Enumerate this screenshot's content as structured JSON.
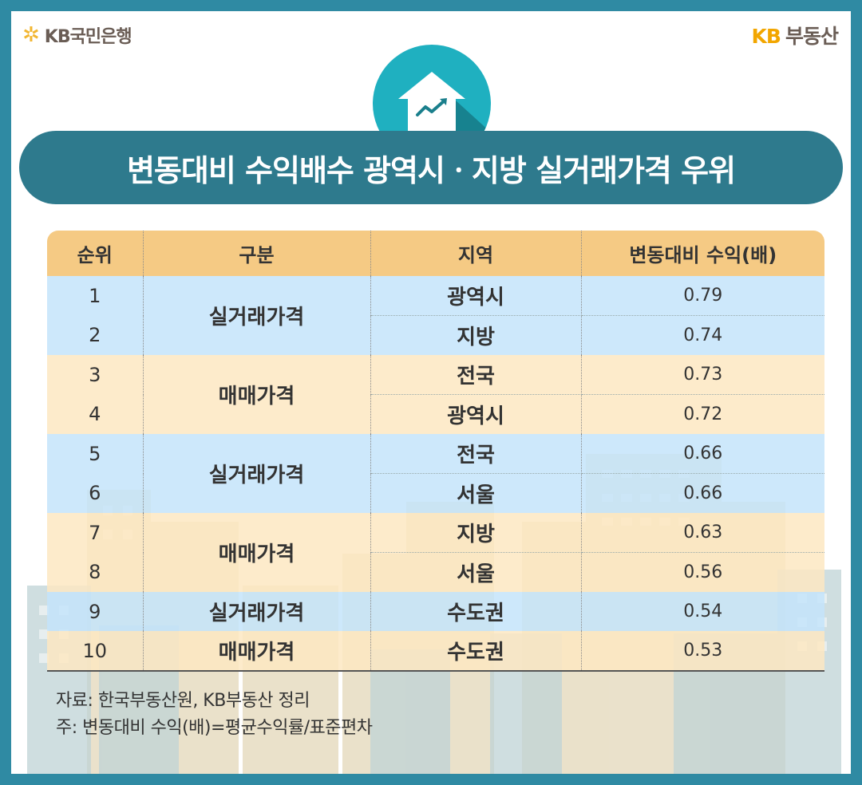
{
  "brand_left": "KB국민은행",
  "brand_right_prefix": "KB",
  "brand_right_suffix": "부동산",
  "title": "변동대비 수익배수 광역시ㆍ지방 실거래가격 우위",
  "table": {
    "headers": [
      "순위",
      "구분",
      "지역",
      "변동대비 수익(배)"
    ],
    "groups": [
      {
        "category": "실거래가격",
        "color": "blue",
        "rows": [
          {
            "rank": "1",
            "region": "광역시",
            "value": "0.79"
          },
          {
            "rank": "2",
            "region": "지방",
            "value": "0.74"
          }
        ]
      },
      {
        "category": "매매가격",
        "color": "tan",
        "rows": [
          {
            "rank": "3",
            "region": "전국",
            "value": "0.73"
          },
          {
            "rank": "4",
            "region": "광역시",
            "value": "0.72"
          }
        ]
      },
      {
        "category": "실거래가격",
        "color": "blue",
        "rows": [
          {
            "rank": "5",
            "region": "전국",
            "value": "0.66"
          },
          {
            "rank": "6",
            "region": "서울",
            "value": "0.66"
          }
        ]
      },
      {
        "category": "매매가격",
        "color": "tan",
        "rows": [
          {
            "rank": "7",
            "region": "지방",
            "value": "0.63"
          },
          {
            "rank": "8",
            "region": "서울",
            "value": "0.56"
          }
        ]
      },
      {
        "category": "실거래가격",
        "color": "blue",
        "rows": [
          {
            "rank": "9",
            "region": "수도권",
            "value": "0.54"
          }
        ]
      },
      {
        "category": "매매가격",
        "color": "tan",
        "rows": [
          {
            "rank": "10",
            "region": "수도권",
            "value": "0.53"
          }
        ]
      }
    ]
  },
  "notes": {
    "source": "자료: 한국부동산원, KB부동산 정리",
    "footnote": "주: 변동대비 수익(배)=평균수익률/표준편차"
  },
  "colors": {
    "frame": "#2f8aa3",
    "title_bar": "#2e7a8d",
    "header": "#f5ca84",
    "row_blue": "#c4e4fa",
    "row_tan": "#fde8c2",
    "brand_yellow": "#f2a600"
  },
  "icons": [
    "kb-star-icon",
    "house-chart-icon"
  ]
}
